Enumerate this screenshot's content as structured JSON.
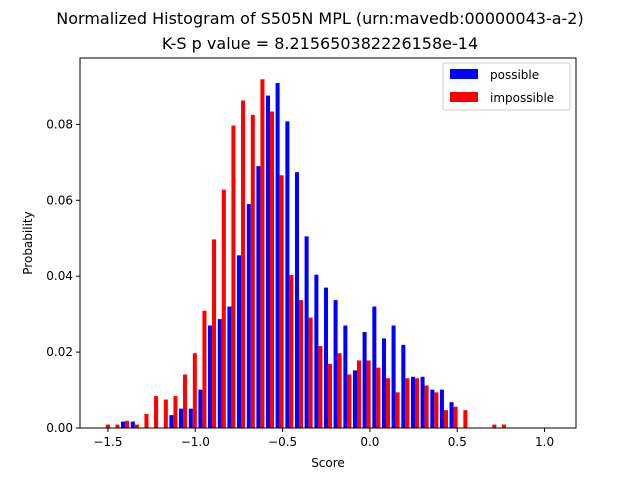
{
  "chart_data": {
    "type": "bar",
    "title": "Normalized Histogram of S505N MPL (urn:mavedb:00000043-a-2)",
    "subtitle": "K-S p value = 8.215650382226158e-14",
    "xlabel": "Score",
    "ylabel": "Probability",
    "xlim": [
      -1.66,
      1.18
    ],
    "ylim": [
      0,
      0.0975
    ],
    "x_ticks": [
      {
        "value": -1.5,
        "label": "−1.5"
      },
      {
        "value": -1.0,
        "label": "−1.0"
      },
      {
        "value": -0.5,
        "label": "−0.5"
      },
      {
        "value": 0.0,
        "label": "0.0"
      },
      {
        "value": 0.5,
        "label": "0.5"
      },
      {
        "value": 1.0,
        "label": "1.0"
      }
    ],
    "y_ticks": [
      {
        "value": 0.0,
        "label": "0.00"
      },
      {
        "value": 0.02,
        "label": "0.02"
      },
      {
        "value": 0.04,
        "label": "0.04"
      },
      {
        "value": 0.06,
        "label": "0.06"
      },
      {
        "value": 0.08,
        "label": "0.08"
      }
    ],
    "grid": false,
    "legend_position": "top-right",
    "x": [
      -1.512,
      -1.457,
      -1.402,
      -1.346,
      -1.291,
      -1.236,
      -1.18,
      -1.125,
      -1.07,
      -1.014,
      -0.959,
      -0.904,
      -0.848,
      -0.793,
      -0.738,
      -0.682,
      -0.627,
      -0.572,
      -0.517,
      -0.461,
      -0.406,
      -0.351,
      -0.295,
      -0.24,
      -0.185,
      -0.129,
      -0.074,
      -0.019,
      0.037,
      0.092,
      0.147,
      0.203,
      0.258,
      0.313,
      0.369,
      0.424,
      0.479,
      0.535,
      0.59,
      0.645,
      0.701,
      0.756,
      0.811,
      0.867,
      0.922,
      0.977,
      1.033
    ],
    "series": [
      {
        "name": "possible",
        "color": "#0000ff",
        "values": [
          0,
          0,
          0.0017,
          0.0017,
          0,
          0,
          0,
          0.0034,
          0.0051,
          0.0051,
          0.0101,
          0.027,
          0.0287,
          0.032,
          0.0455,
          0.059,
          0.069,
          0.0876,
          0.0909,
          0.0808,
          0.0674,
          0.0505,
          0.0404,
          0.037,
          0.0337,
          0.027,
          0.0152,
          0.0253,
          0.032,
          0.0236,
          0.027,
          0.0219,
          0.0135,
          0.0135,
          0.0101,
          0.0101,
          0.0068,
          0,
          0,
          0,
          0,
          0,
          0,
          0,
          0,
          0,
          0
        ]
      },
      {
        "name": "impossible",
        "color": "#ff0000",
        "values": [
          0.0009,
          0.0009,
          0.0019,
          0.0009,
          0.0037,
          0.0084,
          0.0075,
          0.0084,
          0.0141,
          0.0197,
          0.0309,
          0.0497,
          0.0628,
          0.0797,
          0.0863,
          0.0825,
          0.0919,
          0.0834,
          0.0666,
          0.0403,
          0.0337,
          0.0291,
          0.0216,
          0.0169,
          0.0197,
          0.0141,
          0.0178,
          0.0178,
          0.0159,
          0.0131,
          0.0094,
          0.0131,
          0.0131,
          0.0112,
          0.0094,
          0.0047,
          0.0056,
          0.0047,
          0,
          0,
          0.0009,
          0.0009,
          0,
          0,
          0,
          0,
          0
        ]
      }
    ]
  }
}
